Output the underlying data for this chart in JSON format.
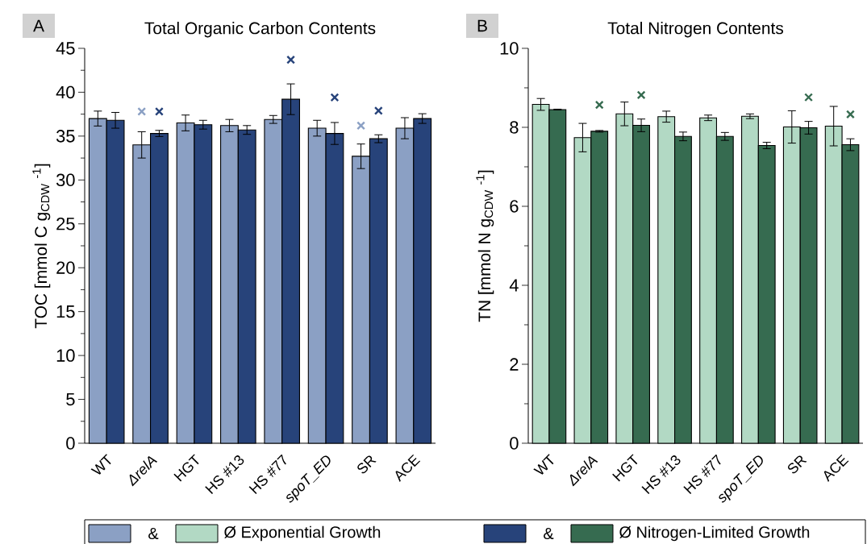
{
  "chart_data": [
    {
      "type": "bar",
      "title": "Total Organic Carbon Contents",
      "ylabel": "TOC [mmol C g$_{CDW}$ $^{-1}$]",
      "categories": [
        "WT",
        "*ΔrelA*",
        "HGT",
        "HS #13",
        "HS #77",
        "*spoT_ED*",
        "SR",
        "ACE"
      ],
      "series": [
        {
          "color": "#8ba0c4",
          "values": [
            37.0,
            34.0,
            36.5,
            36.2,
            36.9,
            35.9,
            32.7,
            35.9
          ],
          "errors": [
            0.85,
            1.5,
            0.9,
            0.7,
            0.45,
            0.9,
            1.4,
            1.2
          ]
        },
        {
          "color": "#27437a",
          "values": [
            36.8,
            35.3,
            36.3,
            35.7,
            39.2,
            35.3,
            34.7,
            37.0
          ],
          "errors": [
            0.9,
            0.35,
            0.5,
            0.5,
            1.75,
            1.25,
            0.45,
            0.55
          ]
        },
        {
          "type": "scatter",
          "marker": "cross",
          "color": "#8ba0c4",
          "x": [
            "*ΔrelA*",
            "SR"
          ],
          "values": [
            37.8,
            36.2
          ]
        },
        {
          "type": "scatter",
          "marker": "cross",
          "color": "#27437a",
          "x": [
            "*ΔrelA*",
            "HS #77",
            "*spoT_ED*",
            "SR"
          ],
          "values": [
            37.8,
            43.7,
            39.4,
            37.9
          ]
        }
      ],
      "ylim": [
        0,
        45
      ],
      "yticks": [
        0,
        5,
        10,
        15,
        20,
        25,
        30,
        35,
        40,
        45
      ],
      "annotations": [
        "A",
        "&",
        "&"
      ]
    },
    {
      "type": "bar",
      "title": "Total Nitrogen Contents",
      "ylabel": "TN [mmol N g$_{CDW}$ $^{-1}$]",
      "categories": [
        "WT",
        "*ΔrelA*",
        "HGT",
        "HS #13",
        "HS #77",
        "*spoT_ED*",
        "SR",
        "ACE"
      ],
      "series": [
        {
          "name": "Ø Exponential Growth",
          "color": "#b2d9c4",
          "values": [
            8.58,
            7.74,
            8.34,
            8.27,
            8.24,
            8.28,
            8.01,
            8.03
          ],
          "errors": [
            0.15,
            0.36,
            0.3,
            0.14,
            0.07,
            0.06,
            0.41,
            0.5
          ]
        },
        {
          "name": "Ø Nitrogen-Limited Growth",
          "color": "#366b50",
          "values": [
            8.45,
            7.9,
            8.05,
            7.77,
            7.77,
            7.54,
            7.99,
            7.56
          ],
          "errors": [
            0.01,
            0.02,
            0.16,
            0.11,
            0.1,
            0.08,
            0.16,
            0.15
          ]
        },
        {
          "type": "scatter",
          "marker": "cross",
          "color": "#366b50",
          "x": [
            "*ΔrelA*",
            "HGT",
            "SR",
            "ACE"
          ],
          "values": [
            8.57,
            8.82,
            8.76,
            8.33
          ]
        }
      ],
      "ylim": [
        0,
        10
      ],
      "yticks": [
        0,
        2,
        4,
        6,
        8,
        10
      ],
      "legend": "bottom",
      "annotations": [
        "B"
      ]
    }
  ]
}
